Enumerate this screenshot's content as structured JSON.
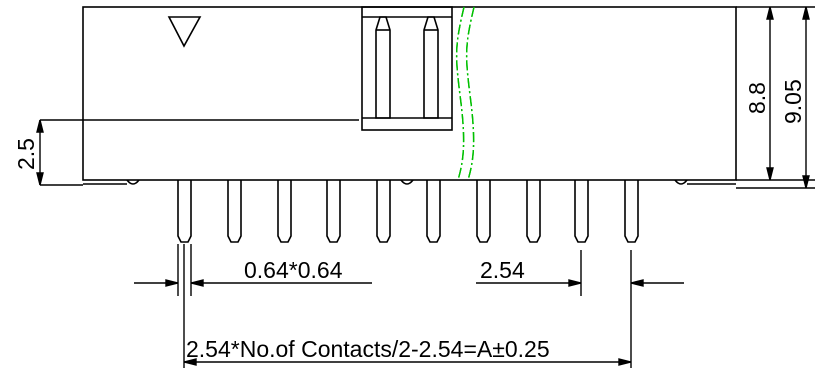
{
  "dimensions": {
    "pitch_label": "2.54",
    "pin_size_label": "0.64*0.64",
    "total_length_label": "2.54*No.of Contacts/2-2.54=A±0.25",
    "pin_height_label": "2.5",
    "body_height_label": "8.8",
    "overall_height_label": "9.05"
  },
  "colors": {
    "line": "#000000",
    "break_line": "#00c000",
    "background": "#ffffff"
  },
  "symbols": {
    "pin1_marker": "triangle-icon"
  }
}
